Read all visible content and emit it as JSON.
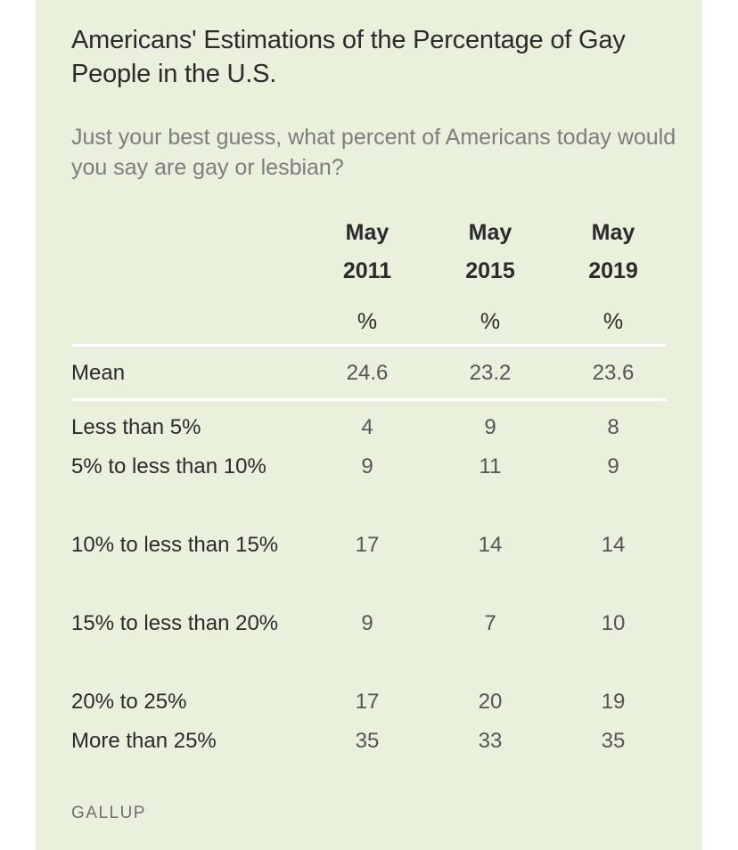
{
  "chart_data": {
    "type": "table",
    "title": "Americans' Estimations of the Percentage of Gay People in the U.S.",
    "subtitle": "Just your best guess, what percent of Americans today would you say are gay or lesbian?",
    "columns": [
      {
        "month": "May",
        "year": "2011",
        "unit": "%"
      },
      {
        "month": "May",
        "year": "2015",
        "unit": "%"
      },
      {
        "month": "May",
        "year": "2019",
        "unit": "%"
      }
    ],
    "summary_row": {
      "label": "Mean",
      "values": [
        "24.6",
        "23.2",
        "23.6"
      ]
    },
    "rows": [
      {
        "label": "Less than 5%",
        "values": [
          "4",
          "9",
          "8"
        ]
      },
      {
        "label": "5% to less than 10%",
        "values": [
          "9",
          "11",
          "9"
        ]
      },
      {
        "label": "10% to less than 15%",
        "values": [
          "17",
          "14",
          "14"
        ]
      },
      {
        "label": "15% to less than 20%",
        "values": [
          "9",
          "7",
          "10"
        ]
      },
      {
        "label": "20% to 25%",
        "values": [
          "17",
          "20",
          "19"
        ]
      },
      {
        "label": "More than 25%",
        "values": [
          "35",
          "33",
          "35"
        ]
      }
    ]
  },
  "source": "GALLUP",
  "colors": {
    "background": "#e9f1dd",
    "rule": "#ffffff",
    "title": "#2b2b2b",
    "subtitle": "#7d7d7d",
    "values": "#555555"
  }
}
